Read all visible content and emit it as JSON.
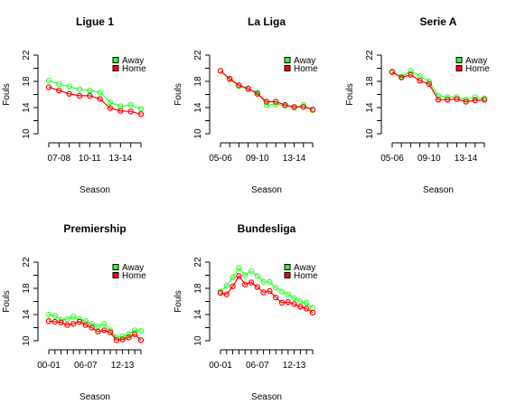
{
  "chart_data": [
    {
      "type": "line",
      "title": "Ligue 1",
      "xlabel": "Season",
      "ylabel": "Fouls",
      "ylim": [
        10,
        22
      ],
      "yticks": [
        "10",
        "14",
        "18",
        "22"
      ],
      "x": [
        "06-07",
        "07-08",
        "08-09",
        "09-10",
        "10-11",
        "11-12",
        "12-13",
        "13-14",
        "14-15",
        "15-16"
      ],
      "xtick_labels": [
        "07-08",
        "10-11",
        "13-14"
      ],
      "legend": "top-right",
      "series": [
        {
          "name": "Away",
          "color": "#33ff33",
          "values": [
            18.1,
            17.6,
            17.2,
            16.8,
            16.6,
            16.3,
            14.8,
            14.2,
            14.4,
            13.8
          ]
        },
        {
          "name": "Home",
          "color": "#ff0000",
          "values": [
            17.1,
            16.6,
            16.1,
            15.8,
            15.8,
            15.3,
            13.9,
            13.5,
            13.4,
            13.0
          ]
        }
      ]
    },
    {
      "type": "line",
      "title": "La Liga",
      "xlabel": "Season",
      "ylabel": "Fouls",
      "ylim": [
        10,
        22
      ],
      "yticks": [
        "10",
        "14",
        "18",
        "22"
      ],
      "x": [
        "05-06",
        "06-07",
        "07-08",
        "08-09",
        "09-10",
        "10-11",
        "11-12",
        "12-13",
        "13-14",
        "14-15",
        "15-16"
      ],
      "xtick_labels": [
        "05-06",
        "09-10",
        "13-14"
      ],
      "legend": "top-right",
      "series": [
        {
          "name": "Away",
          "color": "#33ff33",
          "values": [
            19.6,
            18.3,
            17.3,
            16.8,
            16.3,
            14.4,
            14.5,
            14.3,
            14.0,
            14.4,
            13.6
          ]
        },
        {
          "name": "Home",
          "color": "#ff0000",
          "values": [
            19.6,
            18.4,
            17.4,
            16.9,
            16.1,
            14.9,
            14.9,
            14.4,
            14.1,
            14.1,
            13.7
          ]
        }
      ]
    },
    {
      "type": "line",
      "title": "Serie A",
      "xlabel": "Season",
      "ylabel": "Fouls",
      "ylim": [
        10,
        22
      ],
      "yticks": [
        "10",
        "14",
        "18",
        "22"
      ],
      "x": [
        "05-06",
        "06-07",
        "07-08",
        "08-09",
        "09-10",
        "10-11",
        "11-12",
        "12-13",
        "13-14",
        "14-15",
        "15-16"
      ],
      "xtick_labels": [
        "05-06",
        "09-10",
        "13-14"
      ],
      "legend": "top-right",
      "series": [
        {
          "name": "Away",
          "color": "#33ff33",
          "values": [
            19.5,
            18.7,
            19.6,
            18.8,
            18.0,
            15.8,
            15.6,
            15.6,
            15.2,
            15.6,
            15.4
          ]
        },
        {
          "name": "Home",
          "color": "#ff0000",
          "values": [
            19.4,
            18.6,
            19.0,
            18.1,
            17.6,
            15.2,
            15.2,
            15.3,
            14.9,
            15.1,
            15.2
          ]
        }
      ]
    },
    {
      "type": "line",
      "title": "Premiership",
      "xlabel": "Season",
      "ylabel": "Fouls",
      "ylim": [
        10,
        22
      ],
      "yticks": [
        "10",
        "14",
        "18",
        "22"
      ],
      "x": [
        "00-01",
        "01-02",
        "02-03",
        "03-04",
        "04-05",
        "05-06",
        "06-07",
        "07-08",
        "08-09",
        "09-10",
        "10-11",
        "11-12",
        "12-13",
        "13-14",
        "14-15",
        "15-16"
      ],
      "xtick_labels": [
        "00-01",
        "06-07",
        "12-13"
      ],
      "legend": "top-right",
      "series": [
        {
          "name": "Away",
          "color": "#33ff33",
          "values": [
            14.0,
            13.8,
            13.2,
            13.3,
            13.7,
            13.3,
            13.0,
            12.6,
            12.2,
            12.6,
            11.6,
            10.5,
            10.7,
            11.0,
            11.6,
            11.5
          ]
        },
        {
          "name": "Home",
          "color": "#ff0000",
          "values": [
            13.0,
            12.9,
            12.8,
            12.4,
            12.6,
            12.9,
            12.4,
            12.0,
            11.4,
            11.6,
            11.3,
            10.1,
            10.2,
            10.5,
            11.0,
            10.1
          ]
        }
      ]
    },
    {
      "type": "line",
      "title": "Bundesliga",
      "xlabel": "Season",
      "ylabel": "Fouls",
      "ylim": [
        10,
        22
      ],
      "yticks": [
        "10",
        "14",
        "18",
        "22"
      ],
      "x": [
        "00-01",
        "01-02",
        "02-03",
        "03-04",
        "04-05",
        "05-06",
        "06-07",
        "07-08",
        "08-09",
        "09-10",
        "10-11",
        "11-12",
        "12-13",
        "13-14",
        "14-15",
        "15-16"
      ],
      "xtick_labels": [
        "00-01",
        "06-07",
        "12-13"
      ],
      "legend": "top-right",
      "series": [
        {
          "name": "Away",
          "color": "#33ff33",
          "values": [
            17.5,
            18.4,
            19.7,
            21.1,
            20.0,
            20.6,
            19.9,
            19.0,
            19.0,
            18.1,
            17.5,
            17.1,
            16.5,
            16.0,
            15.8,
            15.0
          ]
        },
        {
          "name": "Home",
          "color": "#ff0000",
          "values": [
            17.3,
            17.1,
            18.3,
            19.9,
            18.6,
            18.9,
            18.2,
            17.4,
            17.6,
            16.6,
            15.8,
            15.9,
            15.6,
            15.2,
            14.9,
            14.3
          ]
        }
      ]
    }
  ]
}
